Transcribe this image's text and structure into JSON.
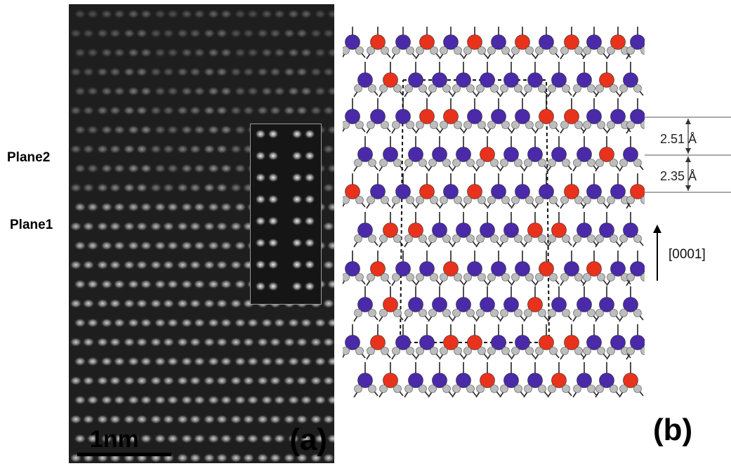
{
  "panel_a": {
    "plane_labels": [
      "Plane2",
      "Plane1"
    ],
    "scale_bar": "1nm",
    "label": "(a)"
  },
  "panel_b": {
    "label": "(b)",
    "distances": [
      "2.51 Å",
      "2.35 Å"
    ],
    "direction": "[0001]"
  },
  "colors": {
    "cation_blue": "#4a2aa8",
    "cation_red": "#e8321c",
    "anion_grey": "#bdbdbd"
  }
}
